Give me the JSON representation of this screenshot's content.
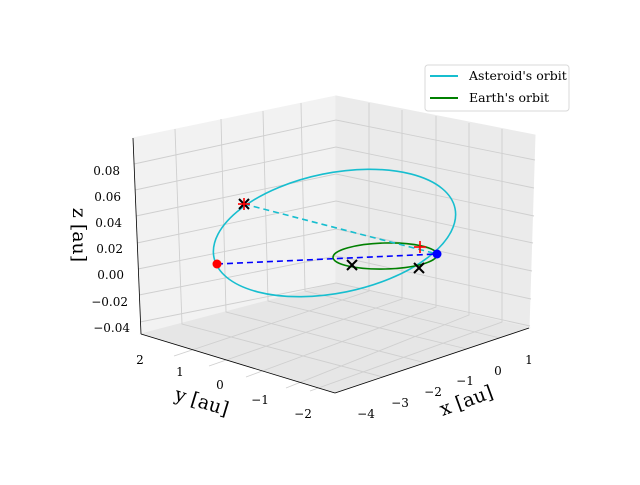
{
  "chart_data": {
    "type": "line3d",
    "title": "",
    "xlabel": "x [au]",
    "ylabel": "y [au]",
    "zlabel": "z [au]",
    "x_ticks": [
      "−4",
      "−3",
      "−2",
      "−1",
      "0",
      "1"
    ],
    "y_ticks": [
      "2",
      "1",
      "0",
      "−1",
      "−2"
    ],
    "z_ticks": [
      "0.08",
      "0.06",
      "0.04",
      "0.02",
      "0.00",
      "−0.02",
      "−0.04"
    ],
    "z_values": [
      0.08,
      0.06,
      0.04,
      0.02,
      0.0,
      -0.02,
      -0.04
    ],
    "zlim": [
      -0.043,
      0.095
    ],
    "grid": true,
    "legend_position": "top-right",
    "series": [
      {
        "name": "Asteroid's orbit",
        "color": "#17becf",
        "style": "solid"
      },
      {
        "name": "Earth's orbit",
        "color": "#008000",
        "style": "solid"
      }
    ],
    "markers": [
      {
        "label": "asteroid-position",
        "color": "#ff0000",
        "style": "dot",
        "z": 0.008
      },
      {
        "label": "earth-position",
        "color": "#0000ff",
        "style": "dot",
        "z": 0.015
      },
      {
        "label": "x-marker-asteroid",
        "color": "#000000",
        "style": "x",
        "z": 0.055
      },
      {
        "label": "x-marker-earth-1",
        "color": "#000000",
        "style": "x",
        "z": 0.006
      },
      {
        "label": "x-marker-earth-2",
        "color": "#000000",
        "style": "x",
        "z": 0.006
      },
      {
        "label": "plus-marker-asteroid",
        "color": "#ff0000",
        "style": "+",
        "z": 0.055
      },
      {
        "label": "plus-marker-earth",
        "color": "#ff0000",
        "style": "+",
        "z": 0.02
      }
    ],
    "connectors": [
      {
        "from": "x-marker-asteroid",
        "to": "earth-position",
        "color": "#17becf",
        "style": "dashed"
      },
      {
        "from": "asteroid-position",
        "to": "earth-position",
        "color": "#0000ff",
        "style": "dashed"
      }
    ]
  }
}
